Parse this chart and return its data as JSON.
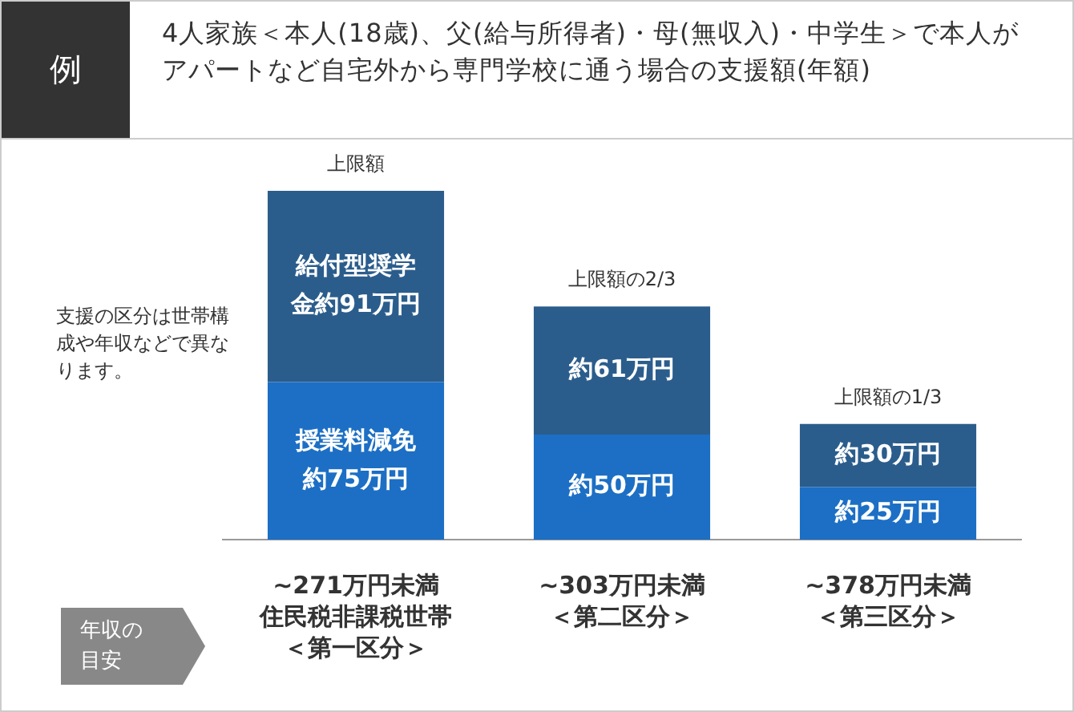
{
  "chart_data": {
    "type": "bar",
    "title": "4人家族＜本人(18歳)、父(給与所得者)・母(無収入)・中学生＞で本人がアパートなど自宅外から専門学校に通う場合の支援額(年額)",
    "stacked": true,
    "legend": false,
    "grid": false,
    "categories": [
      "~271万円未満住民税非課税世帯＜第一区分＞",
      "~303万円未満＜第二区分＞",
      "~378万円未満＜第三区分＞"
    ],
    "series": [
      {
        "color": "#1c6fc4",
        "values": [
          75,
          50,
          25
        ],
        "value_labels": [
          "授業料減免約75万円",
          "約50万円",
          "約25万円"
        ]
      },
      {
        "color": "#2b5d8c",
        "values": [
          91,
          61,
          30
        ],
        "value_labels": [
          "給付型奨学金約91万円",
          "約61万円",
          "約30万円"
        ]
      }
    ],
    "totals": [
      "上限額",
      "上限額の2/3",
      "上限額の1/3"
    ],
    "annotations": [
      "例",
      "支援の区分は世帯構成や年収などで異なります。",
      "年収の目安"
    ]
  }
}
